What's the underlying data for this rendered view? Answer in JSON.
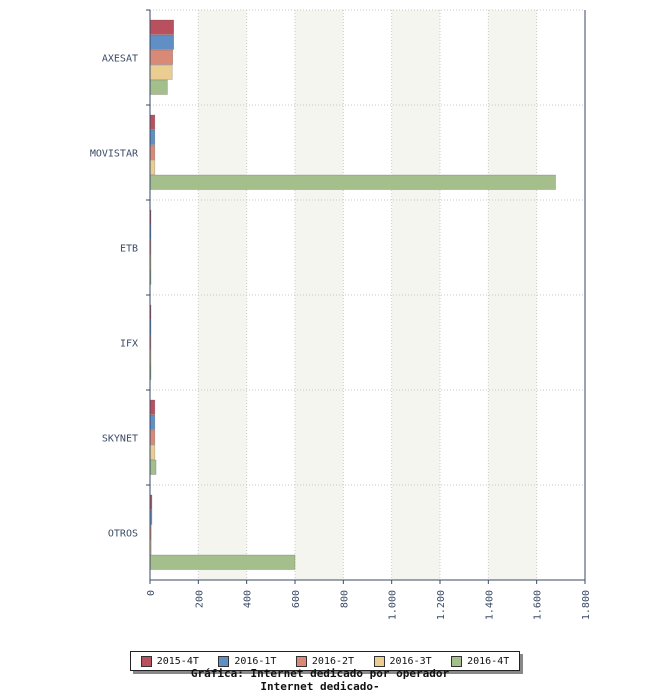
{
  "chart_data": {
    "type": "bar",
    "orientation": "horizontal",
    "categories": [
      "AXESAT",
      "MOVISTAR",
      "ETB",
      "IFX",
      "SKYNET",
      "OTROS"
    ],
    "series": [
      {
        "name": "2015-4T",
        "color": "#b8505e",
        "values": [
          98,
          20,
          1,
          0,
          20,
          8
        ]
      },
      {
        "name": "2016-1T",
        "color": "#5f8fc4",
        "values": [
          98,
          20,
          1,
          0,
          20,
          8
        ]
      },
      {
        "name": "2016-2T",
        "color": "#d88a76",
        "values": [
          94,
          20,
          1,
          0,
          20,
          5
        ]
      },
      {
        "name": "2016-3T",
        "color": "#ebcd92",
        "values": [
          92,
          20,
          1,
          0,
          20,
          5
        ]
      },
      {
        "name": "2016-4T",
        "color": "#a5bf8c",
        "values": [
          72,
          1678,
          0,
          0,
          25,
          600
        ]
      }
    ],
    "xlim": [
      0,
      1800
    ],
    "tick_values": [
      0,
      200,
      400,
      600,
      800,
      1000,
      1200,
      1400,
      1600,
      1800
    ],
    "tick_labels": [
      "0",
      "200",
      "400",
      "600",
      "800",
      "1.000",
      "1.200",
      "1.400",
      "1.600",
      "1.800"
    ],
    "grid": true,
    "legend_position": "bottom"
  },
  "captions": {
    "line1": "Gráfica: Internet dedicado por operador",
    "line2": "Internet dedicado-"
  }
}
